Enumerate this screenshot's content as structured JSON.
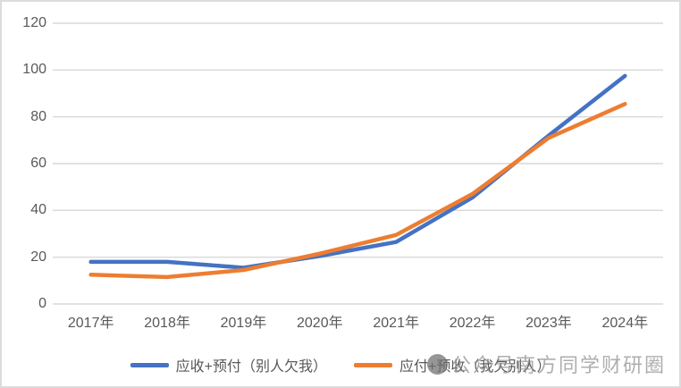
{
  "colors": {
    "series1": "#4472C4",
    "series2": "#ED7D31",
    "gridline": "#D9D9D9",
    "axis_text": "#595959",
    "frame_border": "#DCDCDC",
    "watermark_text": "#8F8F8F",
    "background": "#FFFFFF"
  },
  "watermark": {
    "icon": "circle-logo",
    "text": "公众号南方同学财研圈"
  },
  "chart_data": {
    "type": "line",
    "title": "",
    "xlabel": "",
    "ylabel": "",
    "categories": [
      "2017年",
      "2018年",
      "2019年",
      "2020年",
      "2021年",
      "2022年",
      "2023年",
      "2024年"
    ],
    "series": [
      {
        "name": "应收+预付（别人欠我）",
        "color": "#4472C4",
        "values": [
          18,
          18,
          15.5,
          20.5,
          26.5,
          45.5,
          72,
          97.5
        ]
      },
      {
        "name": "应付+预收（我欠别人）",
        "color": "#ED7D31",
        "values": [
          12.5,
          11.5,
          14.5,
          21.5,
          29.5,
          47,
          71,
          85.5
        ]
      }
    ],
    "ylim": [
      0,
      120
    ],
    "yticks": [
      0,
      20,
      40,
      60,
      80,
      100,
      120
    ],
    "grid": true,
    "legend_position": "bottom"
  }
}
